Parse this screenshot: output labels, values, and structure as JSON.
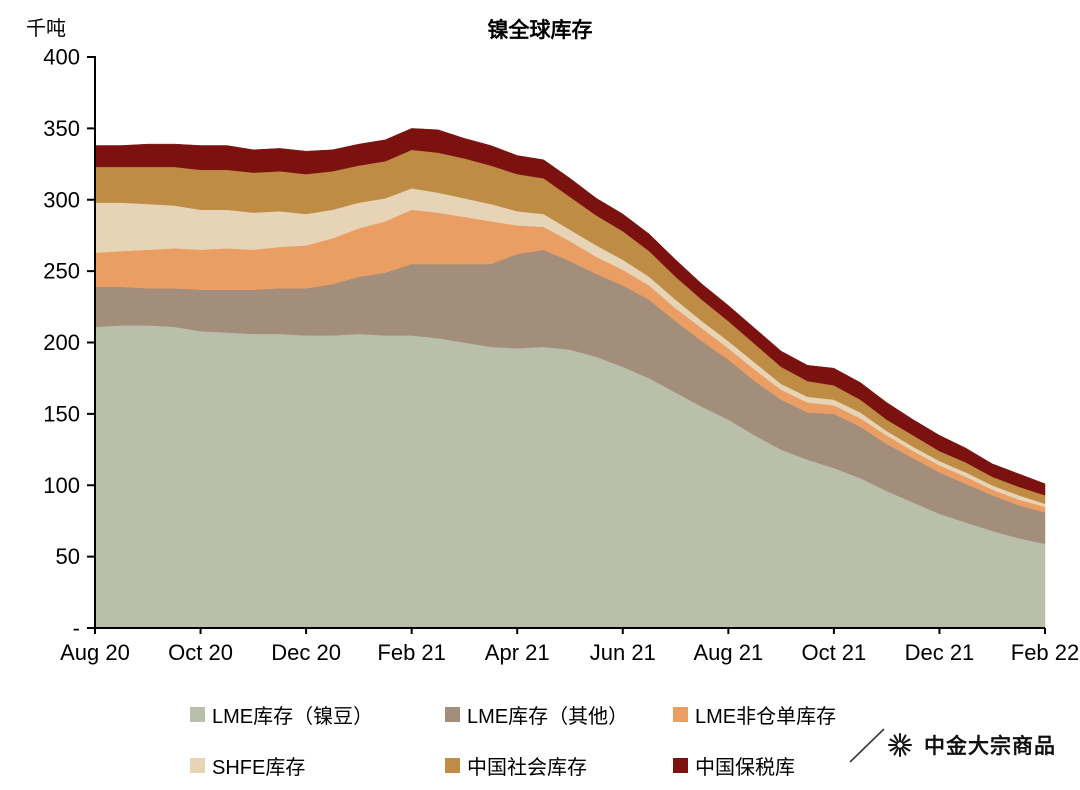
{
  "watermark": {
    "text": "中金大宗商品"
  },
  "chart_data": {
    "type": "area",
    "stacked": true,
    "title": "镍全球库存",
    "ylabel": "千吨",
    "xlabel": "",
    "ylim": [
      0,
      400
    ],
    "grid": false,
    "legend_position": "bottom",
    "y_ticks": [
      {
        "value": 0,
        "label": "-"
      },
      {
        "value": 50,
        "label": "50"
      },
      {
        "value": 100,
        "label": "100"
      },
      {
        "value": 150,
        "label": "150"
      },
      {
        "value": 200,
        "label": "200"
      },
      {
        "value": 250,
        "label": "250"
      },
      {
        "value": 300,
        "label": "300"
      },
      {
        "value": 350,
        "label": "350"
      },
      {
        "value": 400,
        "label": "400"
      }
    ],
    "x_ticks": [
      {
        "index": 0,
        "label": "Aug 20"
      },
      {
        "index": 4,
        "label": "Oct 20"
      },
      {
        "index": 8,
        "label": "Dec 20"
      },
      {
        "index": 12,
        "label": "Feb 21"
      },
      {
        "index": 16,
        "label": "Apr 21"
      },
      {
        "index": 20,
        "label": "Jun 21"
      },
      {
        "index": 24,
        "label": "Aug 21"
      },
      {
        "index": 28,
        "label": "Oct 21"
      },
      {
        "index": 32,
        "label": "Dec 21"
      },
      {
        "index": 36,
        "label": "Feb 22"
      }
    ],
    "x_resolution": "semi-monthly, Aug 2020 to Feb 2022",
    "series": [
      {
        "name": "LME库存（镍豆）",
        "color": "#b9bfa9",
        "values": [
          211,
          212,
          212,
          211,
          208,
          207,
          206,
          206,
          205,
          205,
          206,
          205,
          205,
          203,
          200,
          197,
          196,
          197,
          195,
          190,
          183,
          175,
          165,
          155,
          146,
          135,
          125,
          118,
          112,
          105,
          96,
          88,
          80,
          74,
          68,
          63,
          59
        ]
      },
      {
        "name": "LME库存（其他）",
        "color": "#a28e7a",
        "values": [
          28,
          27,
          26,
          27,
          29,
          30,
          31,
          32,
          33,
          36,
          40,
          44,
          50,
          52,
          55,
          58,
          66,
          68,
          62,
          58,
          57,
          55,
          50,
          46,
          42,
          38,
          35,
          33,
          38,
          36,
          33,
          31,
          29,
          27,
          25,
          23,
          22
        ]
      },
      {
        "name": "LME非仓单库存",
        "color": "#eb9e63",
        "values": [
          24,
          25,
          27,
          28,
          28,
          29,
          28,
          29,
          30,
          32,
          34,
          36,
          38,
          36,
          33,
          30,
          20,
          16,
          14,
          12,
          11,
          10,
          9,
          9,
          8,
          8,
          7,
          7,
          6,
          6,
          6,
          5,
          5,
          5,
          4,
          4,
          4
        ]
      },
      {
        "name": "SHFE库存",
        "color": "#e7d4b6",
        "values": [
          35,
          34,
          32,
          30,
          28,
          27,
          26,
          25,
          22,
          20,
          18,
          16,
          15,
          14,
          13,
          12,
          10,
          9,
          8,
          8,
          7,
          6,
          6,
          5,
          5,
          5,
          4,
          4,
          4,
          4,
          3,
          3,
          3,
          3,
          3,
          3,
          2
        ]
      },
      {
        "name": "中国社会库存",
        "color": "#bf8c46",
        "values": [
          25,
          25,
          26,
          27,
          28,
          28,
          28,
          28,
          28,
          27,
          26,
          26,
          27,
          28,
          28,
          27,
          26,
          25,
          23,
          21,
          20,
          18,
          16,
          15,
          14,
          13,
          12,
          11,
          10,
          9,
          8,
          8,
          7,
          7,
          6,
          6,
          6
        ]
      },
      {
        "name": "中国保税库",
        "color": "#7c120f",
        "values": [
          15,
          15,
          16,
          16,
          17,
          17,
          16,
          16,
          16,
          15,
          15,
          15,
          15,
          16,
          14,
          14,
          13,
          13,
          13,
          12,
          12,
          12,
          12,
          11,
          11,
          11,
          11,
          11,
          12,
          12,
          12,
          11,
          11,
          10,
          9,
          9,
          8
        ]
      }
    ]
  }
}
